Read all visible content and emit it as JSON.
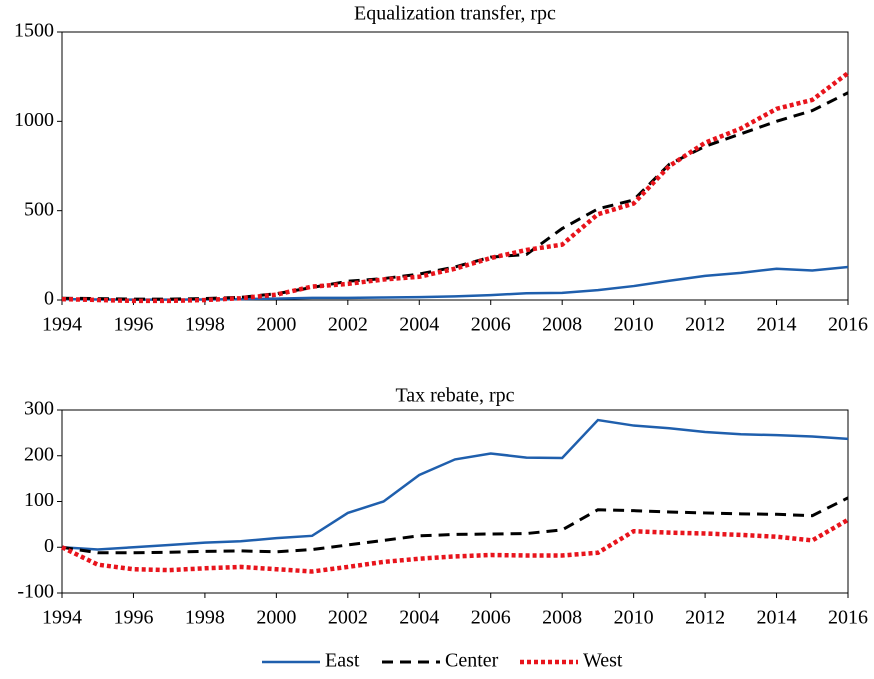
{
  "chart_data": [
    {
      "type": "line",
      "title": "Equalization transfer, rpc",
      "x": [
        1994,
        1995,
        1996,
        1997,
        1998,
        1999,
        2000,
        2001,
        2002,
        2003,
        2004,
        2005,
        2006,
        2007,
        2008,
        2009,
        2010,
        2011,
        2012,
        2013,
        2014,
        2015,
        2016
      ],
      "xlim": [
        1994,
        2016
      ],
      "xticks": [
        1994,
        1996,
        1998,
        2000,
        2002,
        2004,
        2006,
        2008,
        2010,
        2012,
        2014,
        2016
      ],
      "ylim": [
        0,
        1500
      ],
      "yticks": [
        0,
        500,
        1000,
        1500
      ],
      "series": [
        {
          "name": "East",
          "color": "#1f5fad",
          "values": [
            5,
            3,
            2,
            2,
            3,
            5,
            8,
            12,
            12,
            14,
            16,
            20,
            27,
            38,
            40,
            55,
            78,
            108,
            135,
            152,
            175,
            165,
            185
          ]
        },
        {
          "name": "Center",
          "color": "#000000",
          "values": [
            10,
            8,
            5,
            5,
            8,
            15,
            35,
            70,
            105,
            120,
            145,
            185,
            240,
            255,
            400,
            510,
            560,
            760,
            860,
            930,
            1000,
            1060,
            1160
          ]
        },
        {
          "name": "West",
          "color": "#e8141c",
          "values": [
            5,
            0,
            -5,
            -5,
            0,
            10,
            30,
            75,
            90,
            115,
            130,
            175,
            235,
            280,
            310,
            480,
            540,
            750,
            880,
            960,
            1070,
            1120,
            1270
          ]
        }
      ]
    },
    {
      "type": "line",
      "title": "Tax rebate, rpc",
      "x": [
        1994,
        1995,
        1996,
        1997,
        1998,
        1999,
        2000,
        2001,
        2002,
        2003,
        2004,
        2005,
        2006,
        2007,
        2008,
        2009,
        2010,
        2011,
        2012,
        2013,
        2014,
        2015,
        2016
      ],
      "xlim": [
        1994,
        2016
      ],
      "xticks": [
        1994,
        1996,
        1998,
        2000,
        2002,
        2004,
        2006,
        2008,
        2010,
        2012,
        2014,
        2016
      ],
      "ylim": [
        -100,
        300
      ],
      "yticks": [
        -100,
        0,
        100,
        200,
        300
      ],
      "series": [
        {
          "name": "East",
          "color": "#1f5fad",
          "values": [
            0,
            -5,
            0,
            5,
            10,
            13,
            20,
            25,
            75,
            100,
            158,
            192,
            205,
            196,
            195,
            278,
            266,
            260,
            252,
            247,
            245,
            242,
            237
          ]
        },
        {
          "name": "Center",
          "color": "#000000",
          "values": [
            0,
            -12,
            -12,
            -11,
            -9,
            -8,
            -10,
            -5,
            5,
            15,
            25,
            28,
            29,
            30,
            38,
            82,
            80,
            77,
            75,
            73,
            72,
            69,
            108
          ]
        },
        {
          "name": "West",
          "color": "#e8141c",
          "values": [
            0,
            -38,
            -48,
            -50,
            -46,
            -43,
            -48,
            -53,
            -43,
            -32,
            -25,
            -20,
            -17,
            -18,
            -18,
            -12,
            35,
            32,
            30,
            27,
            23,
            15,
            60
          ]
        }
      ]
    }
  ]
}
